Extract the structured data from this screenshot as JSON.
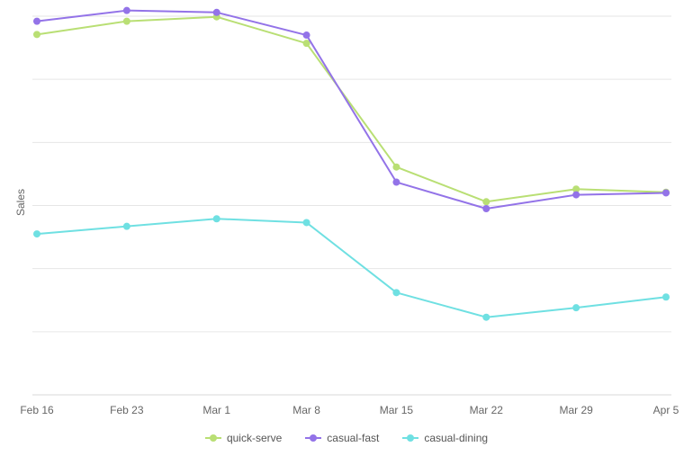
{
  "chart_data": {
    "type": "line",
    "ylabel": "Sales",
    "xlabel": "",
    "categories": [
      "Feb 16",
      "Feb 23",
      "Mar 1",
      "Mar 8",
      "Mar 15",
      "Mar 22",
      "Mar 29",
      "Apr 5"
    ],
    "ylim": [
      0,
      6
    ],
    "grid": true,
    "legend_position": "bottom-center",
    "series": [
      {
        "name": "quick-serve",
        "color": "#b9df74",
        "values": [
          5.71,
          5.92,
          5.99,
          5.57,
          3.61,
          3.06,
          3.26,
          3.21
        ]
      },
      {
        "name": "casual-fast",
        "color": "#9373e8",
        "values": [
          5.92,
          6.09,
          6.06,
          5.7,
          3.37,
          2.95,
          3.17,
          3.2
        ]
      },
      {
        "name": "casual-dining",
        "color": "#6fe0e2",
        "values": [
          2.55,
          2.67,
          2.79,
          2.73,
          1.62,
          1.23,
          1.38,
          1.55
        ]
      }
    ]
  }
}
